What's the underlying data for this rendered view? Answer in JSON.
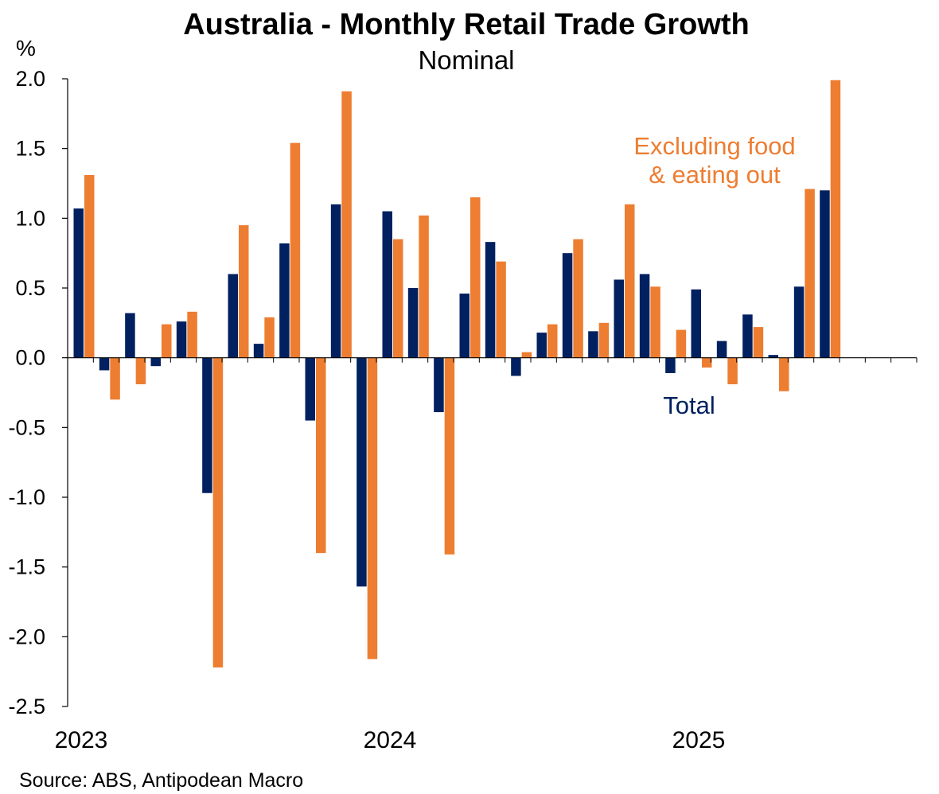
{
  "chart_data": {
    "type": "bar",
    "title": "Australia - Monthly Retail Trade Growth",
    "subtitle": "Nominal",
    "ylabel": "%",
    "ylim": [
      -2.5,
      2.0
    ],
    "yticks": [
      2.0,
      1.5,
      1.0,
      0.5,
      0.0,
      -0.5,
      -1.0,
      -1.5,
      -2.0,
      -2.5
    ],
    "ytick_labels": [
      "2.0",
      "1.5",
      "1.0",
      "0.5",
      "0.0",
      "-0.5",
      "-1.0",
      "-1.5",
      "-2.0",
      "-2.5"
    ],
    "year_labels": [
      {
        "label": "2023",
        "month_index": 0
      },
      {
        "label": "2024",
        "month_index": 12
      },
      {
        "label": "2025",
        "month_index": 24
      }
    ],
    "categories": [
      "Jan 2023",
      "Feb 2023",
      "Mar 2023",
      "Apr 2023",
      "May 2023",
      "Jun 2023",
      "Jul 2023",
      "Aug 2023",
      "Sep 2023",
      "Oct 2023",
      "Nov 2023",
      "Dec 2023",
      "Jan 2024",
      "Feb 2024",
      "Mar 2024",
      "Apr 2024",
      "May 2024",
      "Jun 2024",
      "Jul 2024",
      "Aug 2024",
      "Sep 2024",
      "Oct 2024",
      "Nov 2024",
      "Dec 2024",
      "Jan 2025",
      "Feb 2025",
      "Mar 2025",
      "Apr 2025",
      "May 2025",
      "Jun 2025",
      "Jul 2025",
      "Aug 2025",
      "Sep 2025"
    ],
    "series": [
      {
        "name": "Total",
        "color": "#002060",
        "values": [
          1.07,
          -0.09,
          0.32,
          -0.06,
          0.26,
          -0.97,
          0.6,
          0.1,
          0.82,
          -0.45,
          1.1,
          -1.64,
          1.05,
          0.5,
          -0.39,
          0.46,
          0.83,
          -0.13,
          0.18,
          0.75,
          0.19,
          0.56,
          0.6,
          -0.11,
          0.49,
          0.12,
          0.31,
          0.02,
          0.51,
          1.2,
          null,
          null,
          null
        ]
      },
      {
        "name": "Excluding food & eating out",
        "color": "#ED7D31",
        "values": [
          1.31,
          -0.3,
          -0.19,
          0.24,
          0.33,
          -2.22,
          0.95,
          0.29,
          1.54,
          -1.4,
          1.91,
          -2.16,
          0.85,
          1.02,
          -1.41,
          1.15,
          0.69,
          0.04,
          0.24,
          0.85,
          0.25,
          1.1,
          0.51,
          0.2,
          -0.07,
          -0.19,
          0.22,
          -0.24,
          1.21,
          1.99,
          null,
          null,
          null
        ]
      }
    ],
    "annotations": [
      {
        "text": "Excluding food",
        "series": "Excluding food & eating out"
      },
      {
        "text": "& eating out",
        "series": "Excluding food & eating out"
      },
      {
        "text": "Total",
        "series": "Total"
      }
    ],
    "grid": false,
    "legend": "none"
  },
  "source": "Source: ABS, Antipodean Macro"
}
